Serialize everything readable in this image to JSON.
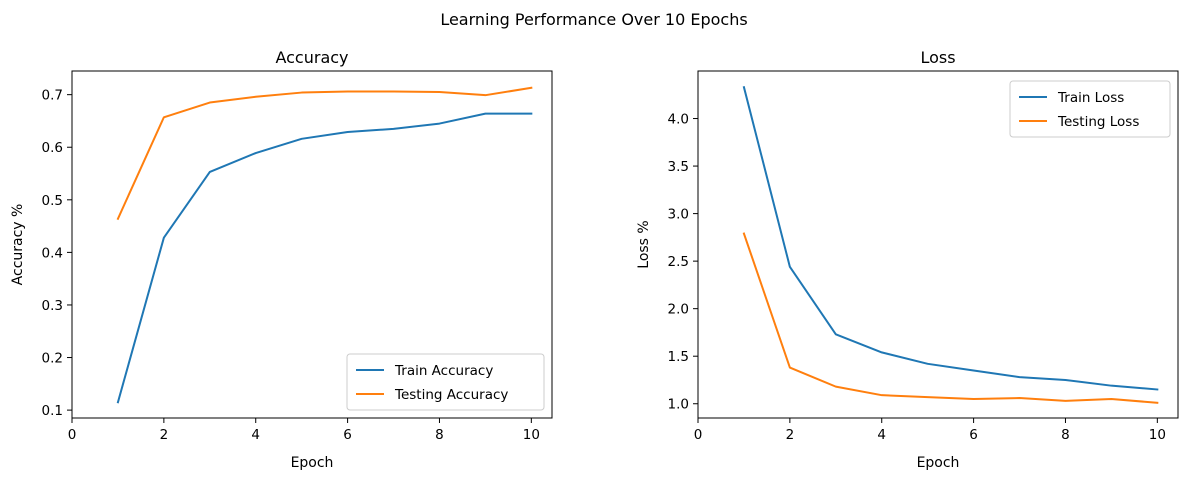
{
  "figure": {
    "suptitle": "Learning Performance Over 10 Epochs"
  },
  "chart_data": [
    {
      "type": "line",
      "title": "Accuracy",
      "xlabel": "Epoch",
      "ylabel": "Accuracy %",
      "xlim": [
        0,
        10.45
      ],
      "ylim": [
        0.085,
        0.745
      ],
      "xticks": [
        0,
        2,
        4,
        6,
        8,
        10
      ],
      "yticks": [
        0.1,
        0.2,
        0.3,
        0.4,
        0.5,
        0.6,
        0.7
      ],
      "x": [
        1,
        2,
        3,
        4,
        5,
        6,
        7,
        8,
        9,
        10
      ],
      "series": [
        {
          "name": "Train Accuracy",
          "color": "#1f77b4",
          "values": [
            0.115,
            0.428,
            0.553,
            0.589,
            0.616,
            0.629,
            0.635,
            0.645,
            0.664,
            0.664
          ]
        },
        {
          "name": "Testing Accuracy",
          "color": "#ff7f0e",
          "values": [
            0.464,
            0.657,
            0.685,
            0.696,
            0.704,
            0.706,
            0.706,
            0.705,
            0.699,
            0.713
          ]
        }
      ],
      "legend": "lower right",
      "grid": false
    },
    {
      "type": "line",
      "title": "Loss",
      "xlabel": "Epoch",
      "ylabel": "Loss %",
      "xlim": [
        0,
        10.45
      ],
      "ylim": [
        0.85,
        4.5
      ],
      "xticks": [
        0,
        2,
        4,
        6,
        8,
        10
      ],
      "yticks": [
        1.0,
        1.5,
        2.0,
        2.5,
        3.0,
        3.5,
        4.0
      ],
      "x": [
        1,
        2,
        3,
        4,
        5,
        6,
        7,
        8,
        9,
        10
      ],
      "series": [
        {
          "name": "Train Loss",
          "color": "#1f77b4",
          "values": [
            4.33,
            2.44,
            1.73,
            1.54,
            1.42,
            1.35,
            1.28,
            1.25,
            1.19,
            1.15
          ]
        },
        {
          "name": "Testing Loss",
          "color": "#ff7f0e",
          "values": [
            2.79,
            1.38,
            1.18,
            1.09,
            1.07,
            1.05,
            1.06,
            1.03,
            1.05,
            1.01
          ]
        }
      ],
      "legend": "upper right",
      "grid": false
    }
  ]
}
